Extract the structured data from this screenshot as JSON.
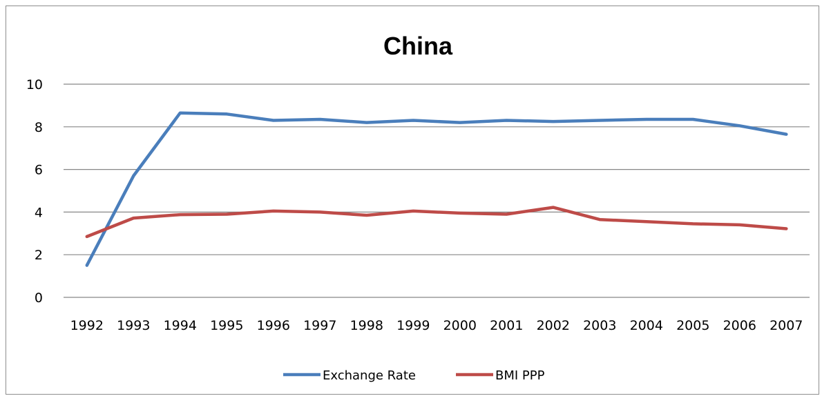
{
  "chart_data": {
    "type": "line",
    "title": "China",
    "xlabel": "",
    "ylabel": "",
    "ylim": [
      0,
      10
    ],
    "yticks": [
      "0",
      "2",
      "4",
      "6",
      "8",
      "10"
    ],
    "grid": true,
    "legend": "bottom",
    "categories": [
      "1992",
      "1993",
      "1994",
      "1995",
      "1996",
      "1997",
      "1998",
      "1999",
      "2000",
      "2001",
      "2002",
      "2003",
      "2004",
      "2005",
      "2006",
      "2007"
    ],
    "series": [
      {
        "name": "Exchange Rate",
        "color": "#4a7ebb",
        "values": [
          1.5,
          5.7,
          8.65,
          8.6,
          8.3,
          8.35,
          8.2,
          8.3,
          8.2,
          8.3,
          8.25,
          8.3,
          8.35,
          8.35,
          8.05,
          7.65
        ]
      },
      {
        "name": "BMI PPP",
        "color": "#be4b48",
        "values": [
          2.85,
          3.72,
          3.88,
          3.9,
          4.05,
          4.0,
          3.85,
          4.05,
          3.95,
          3.9,
          4.22,
          3.65,
          3.55,
          3.45,
          3.4,
          3.22
        ]
      }
    ]
  }
}
